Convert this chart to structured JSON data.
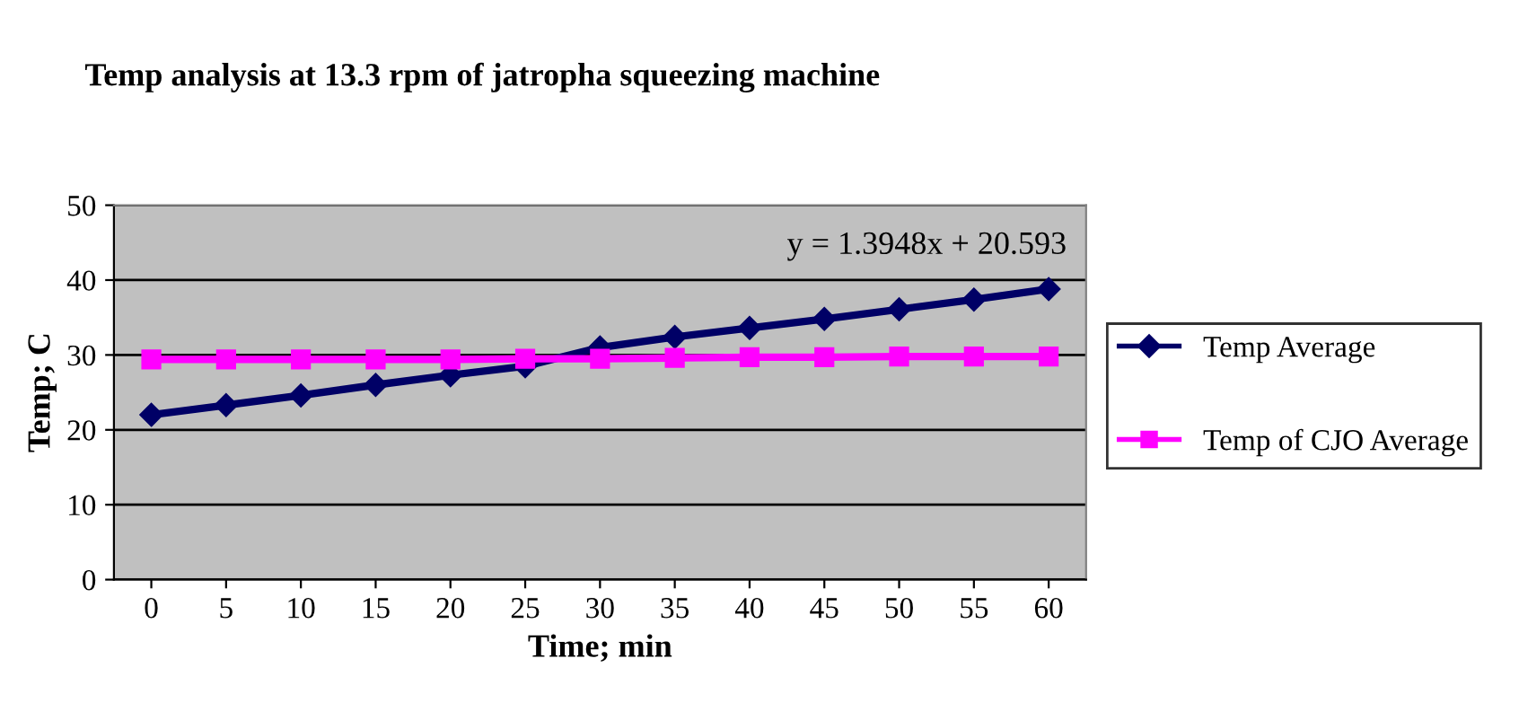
{
  "chart_data": {
    "type": "line",
    "title": "Temp analysis at 13.3 rpm of jatropha squeezing machine",
    "xlabel": "Time; min",
    "ylabel": "Temp; C",
    "categories": [
      "0",
      "5",
      "10",
      "15",
      "20",
      "25",
      "30",
      "35",
      "40",
      "45",
      "50",
      "55",
      "60"
    ],
    "series": [
      {
        "name": "Temp Average",
        "color": "#000066",
        "marker": "diamond",
        "values": [
          22.0,
          23.3,
          24.6,
          26.0,
          27.3,
          28.5,
          31.0,
          32.4,
          33.6,
          34.8,
          36.1,
          37.4,
          38.8
        ]
      },
      {
        "name": "Temp of CJO Average",
        "color": "#ff00ff",
        "marker": "square",
        "values": [
          29.4,
          29.4,
          29.4,
          29.4,
          29.4,
          29.5,
          29.5,
          29.6,
          29.7,
          29.7,
          29.8,
          29.8,
          29.8
        ]
      }
    ],
    "annotations": [
      "y = 1.3948x + 20.593"
    ],
    "ylim": [
      0,
      50
    ],
    "yticks": [
      0,
      10,
      20,
      30,
      40,
      50
    ],
    "grid": "y",
    "legend": "right"
  }
}
